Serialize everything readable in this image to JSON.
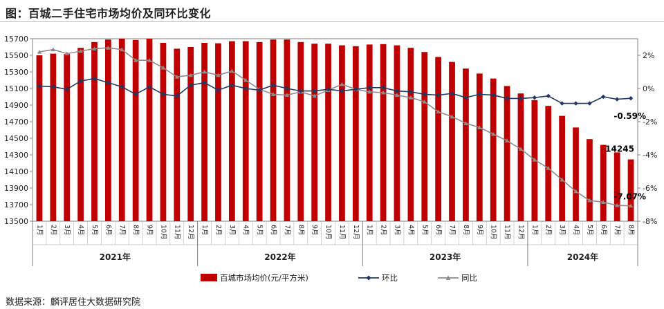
{
  "title": "图：百城二手住宅市场均价及同环比变化",
  "source": "数据来源：麟评居住大数据研究院",
  "colors": {
    "bar": "#c00000",
    "mom": "#1f3864",
    "yoy": "#8c8c8c",
    "axis": "#7f7f7f"
  },
  "chart_data": {
    "type": "bar+line",
    "categories": [
      "1月",
      "2月",
      "3月",
      "4月",
      "5月",
      "6月",
      "7月",
      "8月",
      "9月",
      "10月",
      "11月",
      "12月",
      "1月",
      "2月",
      "3月",
      "4月",
      "5月",
      "6月",
      "7月",
      "8月",
      "9月",
      "10月",
      "11月",
      "12月",
      "1月",
      "2月",
      "3月",
      "4月",
      "5月",
      "6月",
      "7月",
      "8月",
      "9月",
      "10月",
      "11月",
      "12月",
      "1月",
      "2月",
      "3月",
      "4月",
      "5月",
      "6月",
      "7月",
      "8月"
    ],
    "years": [
      {
        "label": "2021年",
        "count": 12
      },
      {
        "label": "2022年",
        "count": 12
      },
      {
        "label": "2023年",
        "count": 12
      },
      {
        "label": "2024年",
        "count": 8
      }
    ],
    "ylim_left": [
      13500,
      15700
    ],
    "yticks_left": [
      "13500",
      "13700",
      "13900",
      "14100",
      "14300",
      "14500",
      "14700",
      "14900",
      "15100",
      "15300",
      "15500",
      "15700"
    ],
    "ylim_right": [
      -8,
      3
    ],
    "yticks_right": [
      "2%",
      "0%",
      "-2%",
      "-4%",
      "-6%",
      "-8%"
    ],
    "series": [
      {
        "name": "百城市场均价(元/平方米)",
        "type": "bar",
        "axis": "left",
        "values": [
          15500,
          15520,
          15515,
          15590,
          15660,
          15690,
          15700,
          15685,
          15700,
          15650,
          15580,
          15600,
          15650,
          15645,
          15670,
          15670,
          15660,
          15690,
          15690,
          15660,
          15640,
          15640,
          15620,
          15610,
          15630,
          15635,
          15620,
          15590,
          15540,
          15480,
          15420,
          15340,
          15280,
          15220,
          15130,
          15040,
          14960,
          14890,
          14770,
          14630,
          14490,
          14420,
          14330,
          14245
        ]
      },
      {
        "name": "环比",
        "type": "line",
        "axis": "right",
        "values": [
          0.15,
          0.1,
          -0.05,
          0.45,
          0.6,
          0.35,
          0.1,
          -0.35,
          0.1,
          -0.35,
          -0.45,
          0.2,
          0.35,
          -0.1,
          0.2,
          0.0,
          -0.1,
          0.2,
          0.0,
          -0.15,
          -0.15,
          -0.05,
          -0.15,
          -0.05,
          0.05,
          0.05,
          -0.15,
          -0.2,
          -0.35,
          -0.4,
          -0.3,
          -0.55,
          -0.35,
          -0.4,
          -0.6,
          -0.6,
          -0.55,
          -0.45,
          -0.9,
          -0.9,
          -0.9,
          -0.5,
          -0.65,
          -0.59
        ]
      },
      {
        "name": "同比",
        "type": "line",
        "axis": "right",
        "values": [
          2.2,
          2.35,
          2.1,
          2.25,
          2.4,
          2.45,
          2.35,
          1.7,
          1.7,
          1.25,
          0.7,
          0.8,
          1.0,
          0.8,
          1.05,
          0.5,
          -0.05,
          -0.35,
          -0.4,
          -0.2,
          -0.45,
          -0.1,
          0.25,
          -0.05,
          -0.2,
          -0.25,
          -0.4,
          -0.55,
          -0.8,
          -1.4,
          -1.7,
          -2.1,
          -2.35,
          -2.75,
          -3.15,
          -3.65,
          -4.3,
          -4.8,
          -5.5,
          -6.2,
          -6.75,
          -6.85,
          -7.05,
          -7.07
        ]
      }
    ],
    "annotations": [
      {
        "text": "14245",
        "series": 0,
        "index": 43
      },
      {
        "text": "-0.59%",
        "series": 1,
        "index": 43
      },
      {
        "text": "-7.07%",
        "series": 2,
        "index": 43
      }
    ],
    "legend_position": "bottom"
  }
}
